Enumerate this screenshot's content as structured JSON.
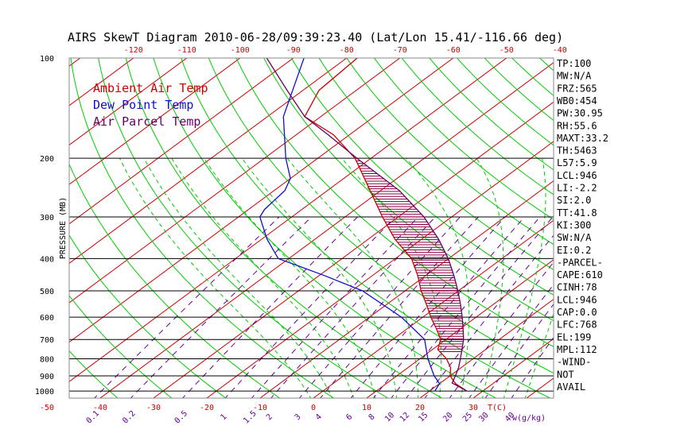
{
  "title": "AIRS SkewT Diagram 2010-06-28/09:39:23.40 (Lat/Lon 15.41/-116.66 deg)",
  "colors": {
    "ambient": "#cc0000",
    "dewpoint": "#1010cc",
    "parcel": "#660066",
    "isotherm": "#cc0000",
    "dry_adiabat": "#00cc00",
    "moist_adiabat": "#00cc00",
    "mixing_ratio": "#660099",
    "pressure_line": "#000000",
    "top_axis": "#cc0000",
    "bottom_axis": "#cc0000",
    "mixing_labels": "#660099"
  },
  "chart_data": {
    "type": "line",
    "title": "AIRS SkewT Diagram 2010-06-28/09:39:23.40 (Lat/Lon 15.41/-116.66 deg)",
    "ylabel": "PRESSURE (MB)",
    "xlabel_bottom": "T(C)",
    "xlabel_mixing": "w(g/kg)",
    "y_scale": "log",
    "ylim": [
      1050,
      100
    ],
    "pressure_lines": [
      100,
      200,
      300,
      400,
      500,
      600,
      700,
      800,
      900,
      1000
    ],
    "y_tick_labels": [
      "100",
      "200",
      "300",
      "400",
      "500",
      "600",
      "700",
      "800",
      "900",
      "1000"
    ],
    "top_ticks": [
      -120,
      -110,
      -100,
      -90,
      -80,
      -70,
      -60,
      -50,
      -40
    ],
    "top_tick_labels": [
      "-120",
      "-110",
      "-100",
      "-90",
      "-80",
      "-70",
      "-60",
      "-50",
      "-40"
    ],
    "bottom_ticks": [
      -50,
      -40,
      -30,
      -20,
      -10,
      0,
      10,
      20,
      30
    ],
    "bottom_tick_labels": [
      "-50",
      "-40",
      "-30",
      "-20",
      "-10",
      "0",
      "10",
      "20",
      "30"
    ],
    "mixing_ratios": [
      0.1,
      0.2,
      0.5,
      1,
      1.5,
      2,
      3,
      4,
      6,
      8,
      10,
      12,
      15,
      20,
      25,
      30,
      40
    ],
    "mixing_ratio_labels": [
      "0.1",
      "0.2",
      "0.5",
      "1",
      "1.5",
      "2",
      "3",
      "4",
      "6",
      "8",
      "10",
      "12",
      "15",
      "20",
      "25",
      "30",
      "40"
    ],
    "grid": true,
    "legend_position": "top-left",
    "series": [
      {
        "name": "Ambient Air Temp",
        "points": [
          {
            "p": 1000,
            "t": 27.0
          },
          {
            "p": 950,
            "t": 23.0
          },
          {
            "p": 900,
            "t": 20.0
          },
          {
            "p": 850,
            "t": 18.0
          },
          {
            "p": 800,
            "t": 15.0
          },
          {
            "p": 750,
            "t": 11.0
          },
          {
            "p": 700,
            "t": 9.0
          },
          {
            "p": 650,
            "t": 5.5
          },
          {
            "p": 600,
            "t": 1.5
          },
          {
            "p": 550,
            "t": -2.5
          },
          {
            "p": 500,
            "t": -7.0
          },
          {
            "p": 450,
            "t": -11.5
          },
          {
            "p": 400,
            "t": -17.0
          },
          {
            "p": 350,
            "t": -25.0
          },
          {
            "p": 300,
            "t": -33.0
          },
          {
            "p": 250,
            "t": -42.0
          },
          {
            "p": 200,
            "t": -53.0
          },
          {
            "p": 170,
            "t": -63.0
          },
          {
            "p": 150,
            "t": -73.0
          },
          {
            "p": 125,
            "t": -77.0
          },
          {
            "p": 100,
            "t": -78.0
          }
        ]
      },
      {
        "name": "Dew Point Temp",
        "points": [
          {
            "p": 1000,
            "t": 21.0
          },
          {
            "p": 950,
            "t": 20.0
          },
          {
            "p": 900,
            "t": 17.0
          },
          {
            "p": 800,
            "t": 11.5
          },
          {
            "p": 700,
            "t": 6.0
          },
          {
            "p": 600,
            "t": -4.0
          },
          {
            "p": 500,
            "t": -18.0
          },
          {
            "p": 450,
            "t": -29.0
          },
          {
            "p": 400,
            "t": -42.0
          },
          {
            "p": 350,
            "t": -49.0
          },
          {
            "p": 300,
            "t": -56.0
          },
          {
            "p": 285,
            "t": -57.0
          },
          {
            "p": 250,
            "t": -58.0
          },
          {
            "p": 230,
            "t": -60.0
          },
          {
            "p": 200,
            "t": -66.0
          },
          {
            "p": 150,
            "t": -77.0
          },
          {
            "p": 100,
            "t": -88.0
          }
        ]
      },
      {
        "name": "Air Parcel Temp",
        "points": [
          {
            "p": 1000,
            "t": 27.0
          },
          {
            "p": 946,
            "t": 22.2
          },
          {
            "p": 900,
            "t": 21.0
          },
          {
            "p": 850,
            "t": 19.5
          },
          {
            "p": 800,
            "t": 17.6
          },
          {
            "p": 768,
            "t": 16.3
          },
          {
            "p": 700,
            "t": 13.3
          },
          {
            "p": 650,
            "t": 10.5
          },
          {
            "p": 600,
            "t": 7.4
          },
          {
            "p": 550,
            "t": 3.9
          },
          {
            "p": 500,
            "t": -0.1
          },
          {
            "p": 450,
            "t": -4.7
          },
          {
            "p": 400,
            "t": -10.1
          },
          {
            "p": 350,
            "t": -16.8
          },
          {
            "p": 300,
            "t": -25.2
          },
          {
            "p": 250,
            "t": -36.5
          },
          {
            "p": 199,
            "t": -53.0
          },
          {
            "p": 170,
            "t": -64.0
          },
          {
            "p": 150,
            "t": -73.0
          },
          {
            "p": 125,
            "t": -83.0
          },
          {
            "p": 100,
            "t": -95.0
          }
        ]
      }
    ],
    "indices": [
      "TP:100",
      "MW:N/A",
      "FRZ:565",
      "WB0:454",
      "PW:30.95",
      "RH:55.6",
      "MAXT:33.2",
      "TH:5463",
      "L57:5.9",
      "LCL:946",
      "LI:-2.2",
      "SI:2.0",
      "TT:41.8",
      "KI:300",
      "SW:N/A",
      "EI:0.2",
      "-PARCEL-",
      "CAPE:610",
      "CINH:78",
      "LCL:946",
      "CAP:0.0",
      "LFC:768",
      "EL:199",
      "MPL:112",
      "-WIND-",
      "NOT",
      "AVAIL"
    ]
  }
}
